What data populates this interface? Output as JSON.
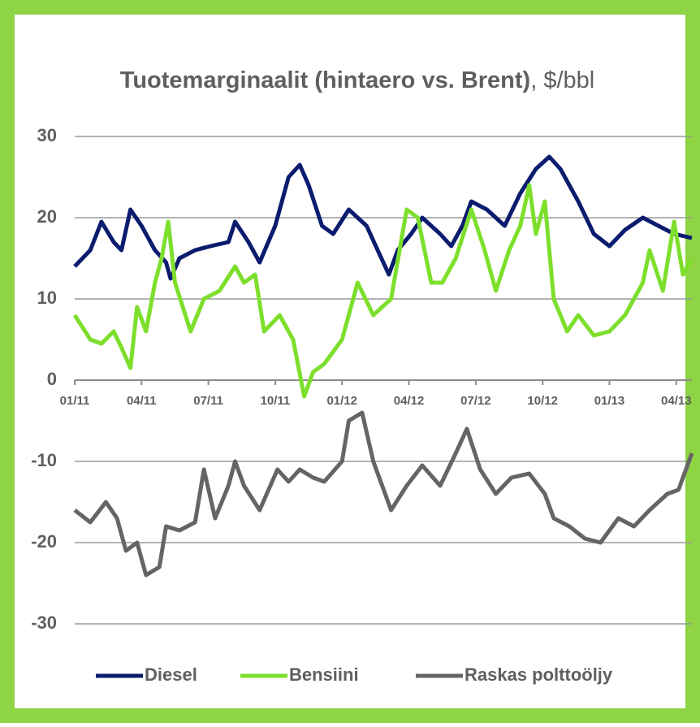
{
  "chart_data": {
    "type": "line",
    "title": "Tuotemarginaalit (hintaero vs. Brent)",
    "title_unit": ", $/bbl",
    "xlim": [
      0,
      27.7
    ],
    "xticks": [
      {
        "value": 0,
        "label": "01/11"
      },
      {
        "value": 3,
        "label": "04/11"
      },
      {
        "value": 6,
        "label": "07/11"
      },
      {
        "value": 9,
        "label": "10/11"
      },
      {
        "value": 12,
        "label": "01/12"
      },
      {
        "value": 15,
        "label": "04/12"
      },
      {
        "value": 18,
        "label": "07/12"
      },
      {
        "value": 21,
        "label": "10/12"
      },
      {
        "value": 24,
        "label": "01/13"
      },
      {
        "value": 27,
        "label": "04/13"
      }
    ],
    "ylim": [
      -30,
      30
    ],
    "yticks": [
      -30,
      -20,
      -10,
      0,
      10,
      20,
      30
    ],
    "grid": true,
    "legend": "bottom",
    "series": [
      {
        "name": "Diesel",
        "color": "#0b1c6e",
        "x": [
          0,
          0.7,
          1.2,
          1.75,
          2.1,
          2.5,
          3,
          3.6,
          4.1,
          4.3,
          4.7,
          5.4,
          6.1,
          6.9,
          7.2,
          7.8,
          8.3,
          9,
          9.6,
          10.1,
          10.5,
          11.1,
          11.6,
          12.3,
          13.1,
          13.6,
          14.1,
          14.5,
          15.1,
          15.6,
          16.4,
          16.9,
          17.4,
          17.8,
          18.5,
          19.3,
          20,
          20.7,
          21.3,
          21.8,
          22.6,
          23.3,
          24,
          24.7,
          25.5,
          26.2,
          26.9,
          27.7
        ],
        "values": [
          14,
          16,
          19.5,
          17,
          16,
          21,
          19,
          16,
          14.5,
          12.5,
          15,
          16,
          16.5,
          17,
          19.5,
          17,
          14.5,
          19,
          25,
          26.5,
          24,
          19,
          18,
          21,
          19,
          16,
          13,
          16,
          18,
          20,
          18,
          16.5,
          19,
          22,
          21,
          19,
          23,
          26,
          27.5,
          26,
          22,
          18,
          16.5,
          18.5,
          20,
          19,
          18,
          17.5
        ]
      },
      {
        "name": "Bensiini",
        "color": "#7ddf2c",
        "x": [
          0,
          0.7,
          1.2,
          1.75,
          2.1,
          2.5,
          2.8,
          3.2,
          3.6,
          3.9,
          4.2,
          4.5,
          5.2,
          5.8,
          6.5,
          7.2,
          7.6,
          8.1,
          8.5,
          9.2,
          9.8,
          10.3,
          10.7,
          11.2,
          12,
          12.7,
          13.4,
          14.2,
          14.9,
          15.4,
          16,
          16.5,
          17.1,
          17.8,
          18.4,
          18.9,
          19.5,
          20,
          20.4,
          20.7,
          21.1,
          21.5,
          22.1,
          22.6,
          23.3,
          24,
          24.7,
          25.5,
          25.8,
          26.4,
          26.9,
          27.3,
          27.7
        ],
        "values": [
          8,
          5,
          4.5,
          6,
          4,
          1.5,
          9,
          6,
          12,
          15,
          19.5,
          12,
          6,
          10,
          11,
          14,
          12,
          13,
          6,
          8,
          5,
          -2,
          1,
          2,
          5,
          12,
          8,
          10,
          21,
          20,
          12,
          12,
          15,
          21,
          16,
          11,
          16,
          19,
          24,
          18,
          22,
          10,
          6,
          8,
          5.5,
          6,
          8,
          12,
          16,
          11,
          19.5,
          13,
          15
        ]
      },
      {
        "name": "Raskas polttoöljy",
        "color": "#656565",
        "x": [
          0,
          0.7,
          1.4,
          1.9,
          2.3,
          2.8,
          3.2,
          3.8,
          4.1,
          4.7,
          5.4,
          5.8,
          6.3,
          6.9,
          7.2,
          7.6,
          8.3,
          9.1,
          9.6,
          10.1,
          10.7,
          11.2,
          12,
          12.3,
          12.9,
          13.4,
          14.2,
          14.9,
          15.6,
          16.4,
          17.1,
          17.6,
          18.2,
          18.9,
          19.6,
          20.4,
          21.1,
          21.5,
          22.2,
          22.9,
          23.6,
          24.4,
          25.1,
          25.8,
          26.6,
          27.1,
          27.7
        ],
        "values": [
          -16,
          -17.5,
          -15,
          -17,
          -21,
          -20,
          -24,
          -23,
          -18,
          -18.5,
          -17.5,
          -11,
          -17,
          -13,
          -10,
          -13,
          -16,
          -11,
          -12.5,
          -11,
          -12,
          -12.5,
          -10,
          -5,
          -4,
          -10,
          -16,
          -13,
          -10.5,
          -13,
          -9,
          -6,
          -11,
          -14,
          -12,
          -11.5,
          -14,
          -17,
          -18,
          -19.5,
          -20,
          -17,
          -18,
          -16,
          -14,
          -13.5,
          -9
        ]
      }
    ]
  }
}
